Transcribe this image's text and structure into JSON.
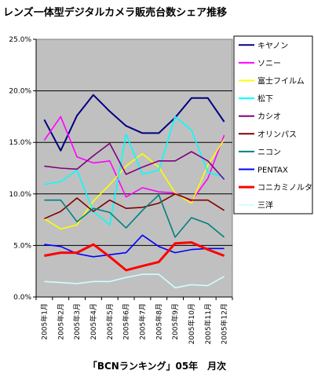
{
  "chart_data": {
    "type": "line",
    "title": "レンズ一体型デジタルカメラ販売台数シェア推移",
    "caption": "「BCNランキング」05年　月次",
    "xlabel": "",
    "ylabel": "",
    "ylim": [
      0,
      25
    ],
    "yticks": [
      "0.0%",
      "5.0%",
      "10.0%",
      "15.0%",
      "20.0%",
      "25.0%"
    ],
    "categories": [
      "2005年1月",
      "2005年2月",
      "2005年3月",
      "2005年4月",
      "2005年5月",
      "2005年6月",
      "2005年7月",
      "2005年8月",
      "2005年9月",
      "2005年10月",
      "2005年11月",
      "2005年12月"
    ],
    "grid": true,
    "legend_position": "right",
    "plot_background": "#c0c0c0",
    "series": [
      {
        "name": "キヤノン",
        "color": "#000080",
        "values": [
          17.2,
          14.2,
          17.6,
          19.6,
          18.0,
          16.6,
          15.9,
          15.9,
          17.4,
          19.3,
          19.3,
          17.0
        ]
      },
      {
        "name": "ソニー",
        "color": "#ff00ff",
        "values": [
          15.2,
          17.5,
          13.6,
          13.0,
          13.2,
          9.7,
          10.6,
          10.2,
          10.1,
          9.3,
          11.5,
          15.7
        ]
      },
      {
        "name": "富士フイルム",
        "color": "#ffff00",
        "values": [
          7.6,
          6.6,
          7.0,
          9.3,
          10.9,
          12.7,
          13.9,
          12.6,
          10.1,
          9.1,
          12.8,
          15.3
        ]
      },
      {
        "name": "松下",
        "color": "#00ffff",
        "values": [
          10.9,
          11.2,
          12.3,
          8.3,
          7.0,
          15.8,
          11.9,
          12.3,
          17.5,
          16.2,
          12.1,
          11.6
        ]
      },
      {
        "name": "カシオ",
        "color": "#800080",
        "values": [
          12.7,
          12.5,
          12.4,
          13.7,
          14.9,
          11.9,
          12.6,
          13.2,
          13.2,
          14.1,
          13.2,
          11.4
        ]
      },
      {
        "name": "オリンパス",
        "color": "#800000",
        "values": [
          7.6,
          8.3,
          9.6,
          8.3,
          9.4,
          8.6,
          8.7,
          9.1,
          10.0,
          9.4,
          9.4,
          8.4
        ]
      },
      {
        "name": "ニコン",
        "color": "#008080",
        "values": [
          9.4,
          9.4,
          7.3,
          8.6,
          8.2,
          6.7,
          8.4,
          9.9,
          5.8,
          7.7,
          7.1,
          5.8
        ]
      },
      {
        "name": "PENTAX",
        "color": "#0000ff",
        "values": [
          5.1,
          4.9,
          4.2,
          3.9,
          4.1,
          4.3,
          6.0,
          4.9,
          4.3,
          4.6,
          4.7,
          4.7
        ]
      },
      {
        "name": "コニカミノルタ",
        "color": "#ff0000",
        "values": [
          4.0,
          4.3,
          4.3,
          5.1,
          3.9,
          2.6,
          3.0,
          3.4,
          5.2,
          5.3,
          4.6,
          4.0
        ]
      },
      {
        "name": "三洋",
        "color": "#ccffff",
        "values": [
          1.5,
          1.4,
          1.3,
          1.5,
          1.5,
          1.9,
          2.2,
          2.2,
          0.9,
          1.2,
          1.1,
          2.0
        ]
      }
    ]
  }
}
